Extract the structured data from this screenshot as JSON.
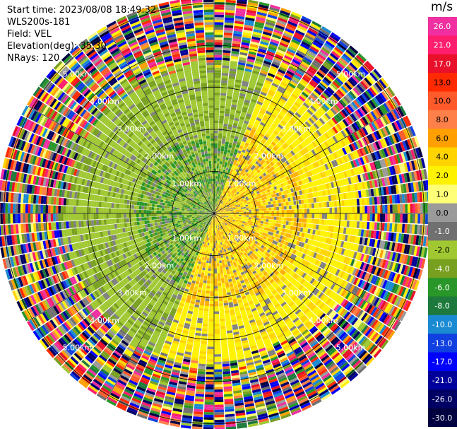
{
  "header": {
    "start_time": "Start time: 2023/08/08 18:49:32",
    "instrument": "WLS200s-181",
    "field": "Field: VEL",
    "elevation": "Elevation(deg): 35.30",
    "nrays": "NRays: 120"
  },
  "colorbar": {
    "unit": "m/s",
    "ticks": [
      "26.0",
      "21.0",
      "17.0",
      "13.0",
      "10.0",
      "8.0",
      "6.0",
      "4.0",
      "2.0",
      "1.0",
      "0.0",
      "-1.0",
      "-2.0",
      "-4.0",
      "-6.0",
      "-8.0",
      "-10.0",
      "-13.0",
      "-17.0",
      "-21.0",
      "-26.0",
      "-30.0"
    ],
    "colors": [
      "#f02fa0",
      "#ff1e6e",
      "#e8102a",
      "#ff2a00",
      "#ff5a2a",
      "#ff8048",
      "#ffa000",
      "#ffd400",
      "#fff200",
      "#ffff78",
      "#9a9a9a",
      "#707070",
      "#a0c832",
      "#78a020",
      "#289628",
      "#1e7a3c",
      "#1a8ad2",
      "#1040e0",
      "#0000ff",
      "#00009a",
      "#000064",
      "#000040"
    ]
  },
  "chart_data": {
    "type": "heatmap",
    "description_type": "ppi",
    "field": "VEL",
    "nrays": 120,
    "range_rings_km": [
      1.0,
      2.0,
      3.0,
      4.0,
      5.0
    ],
    "ring_labels": [
      "1.00km",
      "2.00km",
      "3.00km",
      "4.00km",
      "5.00km"
    ],
    "max_range_km": 5.1,
    "value_range": [
      -30.0,
      26.0
    ],
    "pattern": {
      "positive_sector_deg": [
        20,
        200
      ],
      "negative_sector_deg": [
        200,
        380
      ],
      "noise_beyond_km": 3.6
    }
  }
}
